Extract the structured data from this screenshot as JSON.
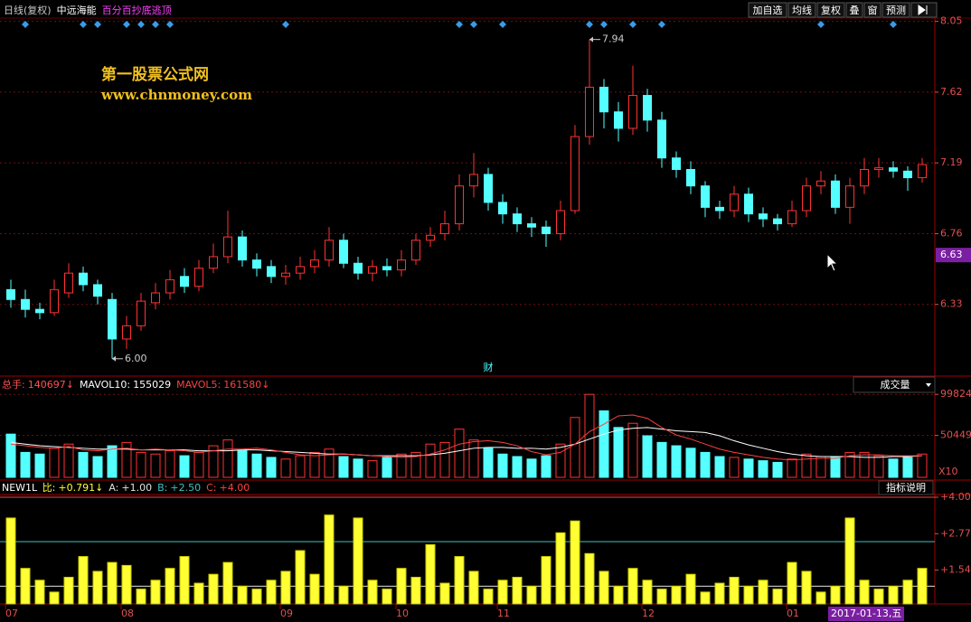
{
  "toolbar": {
    "period": "日线(复权)",
    "stock": "中远海能",
    "formula": "百分百抄底逃顶",
    "buttons": [
      "加自选",
      "均线",
      "复权",
      "叠",
      "窗",
      "预测"
    ]
  },
  "watermark": {
    "title": "第一股票公式网",
    "url": "www.chnmoney.com"
  },
  "chart_data": [
    {
      "type": "candlestick",
      "categories": [
        "07",
        null,
        null,
        null,
        null,
        null,
        null,
        null,
        "08",
        null,
        null,
        null,
        null,
        null,
        null,
        null,
        null,
        null,
        null,
        "09",
        null,
        null,
        null,
        null,
        null,
        null,
        null,
        "10",
        null,
        null,
        null,
        null,
        null,
        null,
        "11",
        null,
        null,
        null,
        null,
        null,
        null,
        null,
        null,
        null,
        "12",
        null,
        null,
        null,
        null,
        null,
        null,
        null,
        null,
        null,
        "01",
        null,
        null,
        null,
        null,
        null,
        null,
        null,
        null,
        null
      ],
      "open": [
        6.42,
        6.36,
        6.3,
        6.28,
        6.4,
        6.52,
        6.45,
        6.36,
        6.12,
        6.2,
        6.34,
        6.4,
        6.5,
        6.44,
        6.55,
        6.62,
        6.74,
        6.6,
        6.56,
        6.5,
        6.52,
        6.56,
        6.6,
        6.72,
        6.58,
        6.52,
        6.56,
        6.54,
        6.6,
        6.72,
        6.76,
        6.82,
        7.05,
        7.12,
        6.95,
        6.88,
        6.82,
        6.8,
        6.76,
        6.9,
        7.35,
        7.65,
        7.5,
        7.4,
        7.6,
        7.45,
        7.22,
        7.15,
        7.05,
        6.92,
        6.9,
        7.0,
        6.88,
        6.85,
        6.82,
        6.9,
        7.05,
        7.08,
        6.92,
        7.05,
        7.15,
        7.16,
        7.14,
        7.1
      ],
      "high": [
        6.48,
        6.42,
        6.34,
        6.48,
        6.58,
        6.56,
        6.48,
        6.4,
        6.26,
        6.4,
        6.46,
        6.54,
        6.55,
        6.6,
        6.7,
        6.9,
        6.78,
        6.64,
        6.6,
        6.57,
        6.62,
        6.66,
        6.8,
        6.76,
        6.62,
        6.6,
        6.61,
        6.66,
        6.76,
        6.8,
        6.9,
        7.12,
        7.25,
        7.16,
        7.0,
        6.92,
        6.86,
        6.84,
        6.96,
        7.42,
        7.94,
        7.7,
        7.56,
        7.78,
        7.64,
        7.5,
        7.26,
        7.2,
        7.08,
        6.96,
        7.05,
        7.04,
        6.92,
        6.88,
        6.96,
        7.1,
        7.14,
        7.12,
        7.1,
        7.22,
        7.22,
        7.2,
        7.17,
        7.22
      ],
      "low": [
        6.31,
        6.25,
        6.24,
        6.26,
        6.37,
        6.41,
        6.33,
        6.0,
        6.06,
        6.17,
        6.3,
        6.36,
        6.4,
        6.41,
        6.52,
        6.58,
        6.56,
        6.5,
        6.46,
        6.45,
        6.48,
        6.52,
        6.56,
        6.55,
        6.48,
        6.47,
        6.5,
        6.5,
        6.57,
        6.68,
        6.72,
        6.78,
        6.98,
        6.9,
        6.82,
        6.77,
        6.74,
        6.68,
        6.72,
        6.88,
        7.3,
        7.4,
        7.32,
        7.36,
        7.38,
        7.16,
        7.1,
        7.0,
        6.86,
        6.85,
        6.86,
        6.83,
        6.8,
        6.78,
        6.8,
        6.86,
        7.0,
        6.88,
        6.82,
        7.0,
        7.1,
        7.1,
        7.02,
        7.07
      ],
      "close": [
        6.36,
        6.3,
        6.28,
        6.42,
        6.52,
        6.45,
        6.38,
        6.12,
        6.2,
        6.35,
        6.4,
        6.48,
        6.44,
        6.55,
        6.62,
        6.74,
        6.6,
        6.55,
        6.5,
        6.52,
        6.56,
        6.6,
        6.72,
        6.58,
        6.52,
        6.56,
        6.54,
        6.6,
        6.72,
        6.75,
        6.82,
        7.05,
        7.12,
        6.95,
        6.88,
        6.82,
        6.8,
        6.76,
        6.9,
        7.35,
        7.65,
        7.5,
        7.4,
        7.6,
        7.45,
        7.22,
        7.15,
        7.05,
        6.92,
        6.9,
        7.0,
        6.88,
        6.85,
        6.82,
        6.9,
        7.05,
        7.08,
        6.92,
        7.05,
        7.15,
        7.16,
        7.14,
        7.1,
        7.18
      ],
      "color_up": "#ff3232",
      "color_down": "#54ffff",
      "ylim": [
        5.9,
        8.07
      ],
      "yticks": [
        6.33,
        6.76,
        7.19,
        7.62,
        8.05
      ],
      "grid": true,
      "signals": [
        1,
        5,
        6,
        8,
        9,
        10,
        11,
        19,
        31,
        32,
        34,
        40,
        41,
        43,
        45,
        56,
        61
      ],
      "signal_color": "#3b9be8",
      "extreme_labels": [
        {
          "index": 40,
          "value": 7.94,
          "label": "7.94"
        },
        {
          "index": 7,
          "value": 6,
          "label": "6.00"
        }
      ],
      "event_marks": [
        {
          "index": 33,
          "label": "财"
        }
      ],
      "cursor_price": 6.63,
      "cursor_date": "2017-01-13,五"
    },
    {
      "type": "bar",
      "series": [
        {
          "name": "总手:",
          "values": [
            52000,
            30000,
            28000,
            35000,
            40000,
            30000,
            25000,
            38000,
            42000,
            30000,
            28000,
            32000,
            26000,
            30000,
            38000,
            45000,
            32000,
            28000,
            24000,
            22000,
            26000,
            30000,
            34000,
            25000,
            22000,
            20000,
            24000,
            28000,
            30000,
            40000,
            42000,
            58000,
            45000,
            35000,
            28000,
            25000,
            22000,
            26000,
            40000,
            72000,
            99824,
            80000,
            60000,
            65000,
            50000,
            42000,
            38000,
            35000,
            30000,
            25000,
            24000,
            22000,
            20000,
            18000,
            22000,
            28000,
            25000,
            24000,
            30000,
            30000,
            26000,
            22000,
            24000,
            28000
          ],
          "color": "#ff5050",
          "reading": {
            "value": 140697,
            "label": "140697↓"
          }
        },
        {
          "name": "MAVOL10:",
          "type": "line",
          "color": "#ffffff",
          "values": [
            42000,
            40000,
            38000,
            37000,
            36000,
            35000,
            34000,
            34000,
            34000,
            33000,
            33000,
            33000,
            33000,
            32000,
            32000,
            32000,
            33000,
            33000,
            32000,
            31000,
            30000,
            29000,
            28000,
            28000,
            27000,
            26000,
            26000,
            26000,
            26000,
            27000,
            29000,
            32000,
            35000,
            36000,
            36000,
            35000,
            35000,
            34000,
            36000,
            40000,
            46000,
            52000,
            57000,
            59000,
            60000,
            58000,
            56000,
            55000,
            54000,
            50000,
            44000,
            39000,
            35000,
            31000,
            28000,
            26000,
            25000,
            25000,
            25000,
            24000,
            24000,
            25000,
            25000,
            26000
          ],
          "reading": {
            "value": 155029,
            "label": "155029"
          }
        },
        {
          "name": "MAVOL5:",
          "type": "line",
          "color": "#ff4040",
          "values": [
            40000,
            38000,
            36000,
            35000,
            37000,
            33000,
            32000,
            34000,
            35000,
            33000,
            34000,
            33000,
            32000,
            30000,
            32000,
            34000,
            34000,
            35000,
            33000,
            30000,
            27000,
            26000,
            27000,
            28000,
            27000,
            26000,
            25000,
            24000,
            25000,
            28000,
            33000,
            40000,
            43000,
            44000,
            42000,
            38000,
            31000,
            27000,
            30000,
            40000,
            55000,
            64000,
            74000,
            75000,
            71000,
            60000,
            51000,
            46000,
            40000,
            34000,
            30000,
            27000,
            24000,
            22000,
            21000,
            22000,
            23000,
            23000,
            26000,
            27000,
            27000,
            26000,
            26000,
            26000
          ],
          "reading": {
            "value": 161580,
            "label": "161580↓"
          }
        }
      ],
      "ylim": [
        0,
        112000
      ],
      "yticks": [
        50449,
        99824
      ],
      "grid": true,
      "scale_label": "X10",
      "selector": "成交量"
    },
    {
      "type": "bar",
      "title": "NEW1L",
      "series": [
        {
          "name": "比:",
          "color": "#ffff33",
          "values": [
            3.3,
            1.6,
            1.2,
            0.8,
            1.3,
            2.0,
            1.5,
            1.8,
            1.7,
            0.9,
            1.2,
            1.6,
            2.0,
            1.1,
            1.4,
            1.8,
            1.0,
            0.9,
            1.2,
            1.5,
            2.2,
            1.4,
            3.4,
            1.0,
            3.3,
            1.2,
            0.9,
            1.6,
            1.3,
            2.4,
            1.1,
            2.0,
            1.5,
            0.9,
            1.2,
            1.3,
            1.0,
            2.0,
            2.8,
            3.2,
            2.1,
            1.5,
            1.0,
            1.6,
            1.2,
            0.9,
            1.0,
            1.4,
            0.8,
            1.1,
            1.3,
            1.0,
            1.2,
            0.9,
            1.8,
            1.5,
            0.8,
            1.0,
            3.3,
            1.2,
            0.9,
            1.0,
            1.2,
            1.6
          ],
          "reading": {
            "value": 0.791,
            "label": "+0.791↓"
          }
        }
      ],
      "ref_lines": [
        {
          "name": "A:",
          "value": 1,
          "label": "+1.00",
          "color": "#e0e0e0"
        },
        {
          "name": "B:",
          "value": 2.5,
          "label": "+2.50",
          "color": "#40c0c0"
        },
        {
          "name": "C:",
          "value": 4,
          "label": "+4.00",
          "color": "#ff4040"
        }
      ],
      "ylim": [
        0.4,
        4.0
      ],
      "yticks": [
        {
          "value": 1.54,
          "label": "+1.54"
        },
        {
          "value": 2.77,
          "label": "+2.77"
        },
        {
          "value": 4.0,
          "label": "+4.00"
        }
      ],
      "button": "指标说明"
    }
  ]
}
